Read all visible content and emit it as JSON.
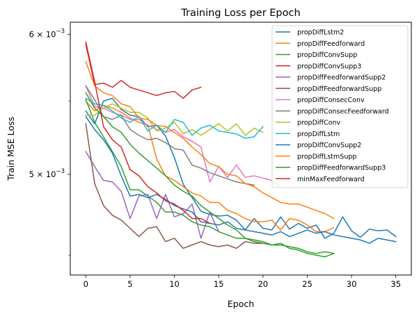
{
  "chart_data": {
    "type": "line",
    "title": "Training Loss per Epoch",
    "xlabel": "Epoch",
    "ylabel": "Train MSE Loss",
    "yscale": "log",
    "xlim": [
      -1.75,
      36.75
    ],
    "ylim": [
      0.004385,
      0.006095
    ],
    "xticks": [
      0,
      5,
      10,
      15,
      20,
      25,
      30,
      35
    ],
    "yticks": [
      {
        "value": 0.005,
        "mantissa": "5",
        "base": "10",
        "exp": "−3"
      },
      {
        "value": 0.006,
        "mantissa": "6",
        "base": "10",
        "exp": "−3"
      }
    ],
    "grid": false,
    "legend_position": "upper-right",
    "series": [
      {
        "name": "propDiffLstm2",
        "color": "#1f77b4",
        "values": [
          0.00543,
          0.00534,
          0.0055,
          0.00552,
          0.00544,
          0.0054,
          0.00539,
          0.00532,
          0.00533,
          0.005255,
          0.00511,
          0.004935,
          0.00485,
          0.004765,
          0.004745,
          0.004735,
          0.00474,
          0.00471,
          0.00465,
          0.00472,
          0.00466,
          0.00465,
          0.00473,
          0.004655,
          0.00469,
          0.00466,
          0.00468,
          0.0046,
          0.00463,
          0.00473,
          0.004645,
          0.004605,
          0.004655,
          0.004645,
          0.00465,
          0.00461
        ]
      },
      {
        "name": "propDiffFeedforward",
        "color": "#ff7f0e",
        "values": [
          0.0055,
          0.00543,
          0.00547,
          0.00545,
          0.00542,
          0.00538,
          0.00535,
          0.00533,
          0.0051,
          0.00499,
          0.00496,
          0.00492,
          0.00488,
          0.00486,
          0.00482,
          0.00482,
          0.00477,
          0.00475,
          0.00472,
          0.0047,
          0.0047,
          0.00471,
          0.00465,
          0.00472,
          0.00471,
          0.00468,
          0.00464,
          0.00464,
          0.004665
        ]
      },
      {
        "name": "propDiffConvSupp",
        "color": "#2ca02c",
        "values": [
          0.00551,
          0.00535,
          0.00525,
          0.00515,
          0.00505,
          0.0049,
          0.0049,
          0.00486,
          0.00482,
          0.00476,
          0.00476,
          0.00474,
          0.0047,
          0.00468,
          0.00467,
          0.00464,
          0.00462,
          0.0046,
          0.0046,
          0.00458,
          0.00457,
          0.00456,
          0.00456,
          0.00455,
          0.00454,
          0.00452,
          0.00451,
          0.00452,
          0.00451
        ]
      },
      {
        "name": "propDiffConvSupp3",
        "color": "#d62728",
        "values": [
          0.00592,
          0.00562,
          0.00563,
          0.0056,
          0.00565,
          0.0056,
          0.00558,
          0.00556,
          0.00554,
          0.00556,
          0.00557,
          0.00552,
          0.00558,
          0.0056
        ]
      },
      {
        "name": "propDiffFeedforwardSupp2",
        "color": "#9467bd",
        "values": [
          0.00515,
          0.00505,
          0.00496,
          0.00495,
          0.00489,
          0.00472,
          0.00486,
          0.00487,
          0.00472,
          0.00487,
          0.00473,
          0.00475,
          0.00481,
          0.0046,
          0.00476,
          0.00464
        ]
      },
      {
        "name": "propDiffFeedforwardSupp",
        "color": "#8c564b",
        "values": [
          0.00534,
          0.00494,
          0.0048,
          0.00474,
          0.00471,
          0.00466,
          0.00461,
          0.00466,
          0.00467,
          0.00458,
          0.0046,
          0.00454,
          0.00456,
          0.00458,
          0.00456,
          0.00455,
          0.00456,
          0.00454,
          0.00458,
          0.00457,
          0.00457
        ]
      },
      {
        "name": "propDiffConsecConv",
        "color": "#e377c2",
        "values": [
          0.00561,
          0.00546,
          0.00545,
          0.00542,
          0.0054,
          0.00537,
          0.00537,
          0.00533,
          0.0053,
          0.00528,
          0.0053,
          0.00525,
          0.00522,
          0.00518,
          0.00495,
          0.00505,
          0.00498,
          0.00506,
          0.00498,
          0.00499,
          0.004975,
          0.00496,
          0.00492
        ]
      },
      {
        "name": "propDiffConsecFeedforward",
        "color": "#7f7f7f",
        "values": [
          0.00561,
          0.00551,
          0.00539,
          0.00537,
          0.0054,
          0.0053,
          0.00526,
          0.00523,
          0.00524,
          0.00521,
          0.00517,
          0.00516,
          0.00506,
          0.00504,
          0.00501,
          0.00499,
          0.00497,
          0.00495,
          0.00494,
          0.00493
        ]
      },
      {
        "name": "propDiffConv",
        "color": "#bcbd22",
        "values": [
          0.0054,
          0.0054,
          0.00545,
          0.00548,
          0.00545,
          0.00542,
          0.00542,
          0.00538,
          0.00529,
          0.00531,
          0.00535,
          0.00527,
          0.0053,
          0.00526,
          0.0053,
          0.00534,
          0.00529,
          0.00534,
          0.00526,
          0.00531,
          0.00528
        ]
      },
      {
        "name": "propDiffLstm",
        "color": "#17becf",
        "values": [
          0.00552,
          0.00548,
          0.00547,
          0.00543,
          0.00538,
          0.00535,
          0.00539,
          0.00529,
          0.00533,
          0.00528,
          0.00537,
          0.00535,
          0.00526,
          0.00531,
          0.00533,
          0.00529,
          0.00528,
          0.00527,
          0.00524,
          0.00525,
          0.00532
        ]
      },
      {
        "name": "propDiffConvSupp2",
        "color": "#1f77b4",
        "values": [
          0.00539,
          0.0053,
          0.00523,
          0.00514,
          0.00499,
          0.00486,
          0.00487,
          0.00485,
          0.00487,
          0.00484,
          0.0048,
          0.00478,
          0.00476,
          0.0047,
          0.00469,
          0.00468,
          0.0047,
          0.00466,
          0.00465,
          0.00464,
          0.00463,
          0.00462,
          0.00464,
          0.00461,
          0.00463,
          0.00465,
          0.00463,
          0.00464,
          0.00462,
          0.00461,
          0.0046,
          0.00459,
          0.00457,
          0.0046,
          0.00459,
          0.00458
        ]
      },
      {
        "name": "propDiffLstmSupp",
        "color": "#ff7f0e",
        "values": [
          0.00579,
          0.00561,
          0.00556,
          0.00554,
          0.00548,
          0.00546,
          0.00538,
          0.00537,
          0.00533,
          0.00532,
          0.00528,
          0.00524,
          0.00518,
          0.00513,
          0.00507,
          0.00505,
          0.005,
          0.00499,
          0.00494,
          0.00492,
          0.00488,
          0.00485,
          0.00482,
          0.00481,
          0.00481,
          0.00479,
          0.00477,
          0.00475,
          0.00472
        ]
      },
      {
        "name": "propDiffFeedforwardSupp3",
        "color": "#2ca02c",
        "values": [
          0.00556,
          0.00545,
          0.00539,
          0.00532,
          0.00528,
          0.0052,
          0.00514,
          0.00509,
          0.00504,
          0.00499,
          0.00493,
          0.00489,
          0.00486,
          0.0048,
          0.00476,
          0.00472,
          0.00468,
          0.00465,
          0.0046,
          0.00459,
          0.00458,
          0.00456,
          0.00457,
          0.00454,
          0.00453,
          0.00451,
          0.0045,
          0.00449,
          0.00451
        ]
      },
      {
        "name": "minMaxFeedforward",
        "color": "#d62728",
        "values": [
          0.00594,
          0.00564,
          0.00532,
          0.00523,
          0.00518,
          0.00503,
          0.00499,
          0.00492,
          0.00488,
          0.00483,
          0.00481,
          0.00477,
          0.00472,
          0.00472,
          0.00469
        ]
      }
    ]
  }
}
